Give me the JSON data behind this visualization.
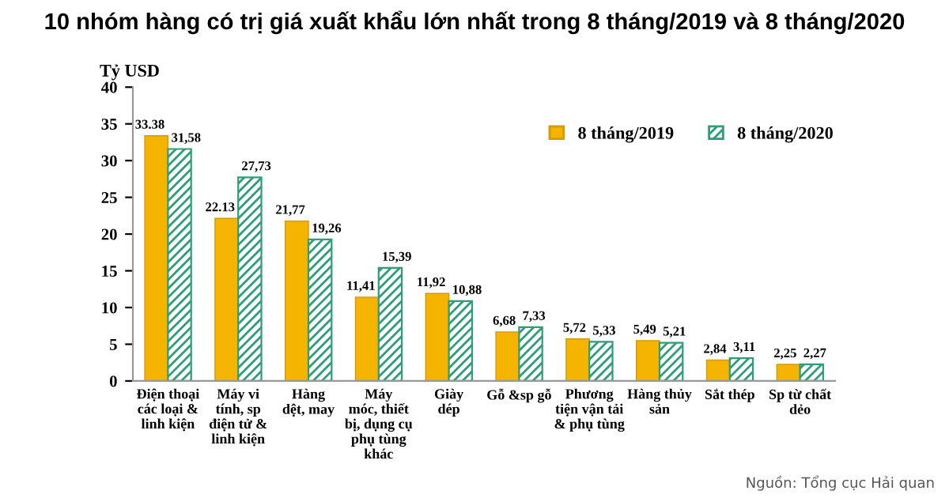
{
  "chart_data": {
    "type": "bar",
    "title": "10 nhóm hàng có trị giá xuất khẩu lớn nhất trong 8 tháng/2019 và 8 tháng/2020",
    "ylabel": "Tỷ USD",
    "categories": [
      "Điện thoại\ncác loại &\nlinh kiện",
      "Máy vi\ntính, sp\nđiện tử &\nlinh kiện",
      "Hàng\ndệt, may",
      "Máy\nmóc, thiết\nbị, dụng cụ\nphụ tùng\nkhác",
      "Giày\ndép",
      "Gỗ &sp gỗ",
      "Phương\ntiện vận tải\n& phụ tùng",
      "Hàng thủy\nsản",
      "Sắt thép",
      "Sp từ chất\ndẻo"
    ],
    "series": [
      {
        "name": "8 tháng/2019",
        "color": "#f5b400",
        "values": [
          33.38,
          22.13,
          21.77,
          11.41,
          11.92,
          6.68,
          5.72,
          5.49,
          2.84,
          2.25
        ],
        "value_labels": [
          "33.38",
          "22.13",
          "21,77",
          "11,41",
          "11,92",
          "6,68",
          "5,72",
          "5,49",
          "2,84",
          "2,25"
        ]
      },
      {
        "name": "8 tháng/2020",
        "color": "#2e9e78",
        "values": [
          31.58,
          27.73,
          19.26,
          15.39,
          10.88,
          7.33,
          5.33,
          5.21,
          3.11,
          2.27
        ],
        "value_labels": [
          "31,58",
          "27,73",
          "19,26",
          "15,39",
          "10,88",
          "7,33",
          "5,33",
          "5,21",
          "3,11",
          "2,27"
        ]
      }
    ],
    "ylim": [
      0,
      40
    ],
    "yticks": [
      0,
      5,
      10,
      15,
      20,
      25,
      30,
      35,
      40
    ],
    "legend": "top right",
    "annotations": [
      "Nguồn: Tổng cục Hải quan"
    ]
  }
}
